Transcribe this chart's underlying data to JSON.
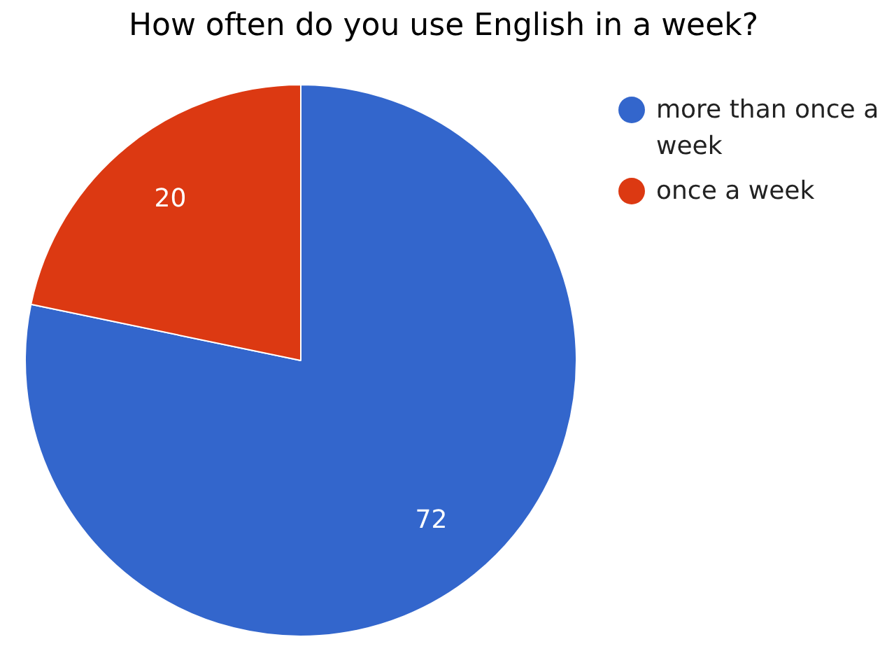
{
  "chart_data": {
    "type": "pie",
    "title": "How often do you use English in a week?",
    "categories": [
      "more than once a week",
      "once a week"
    ],
    "values": [
      72,
      20
    ],
    "colors": [
      "#3366cc",
      "#dc3912"
    ],
    "data_labels": true,
    "legend": "top right"
  }
}
